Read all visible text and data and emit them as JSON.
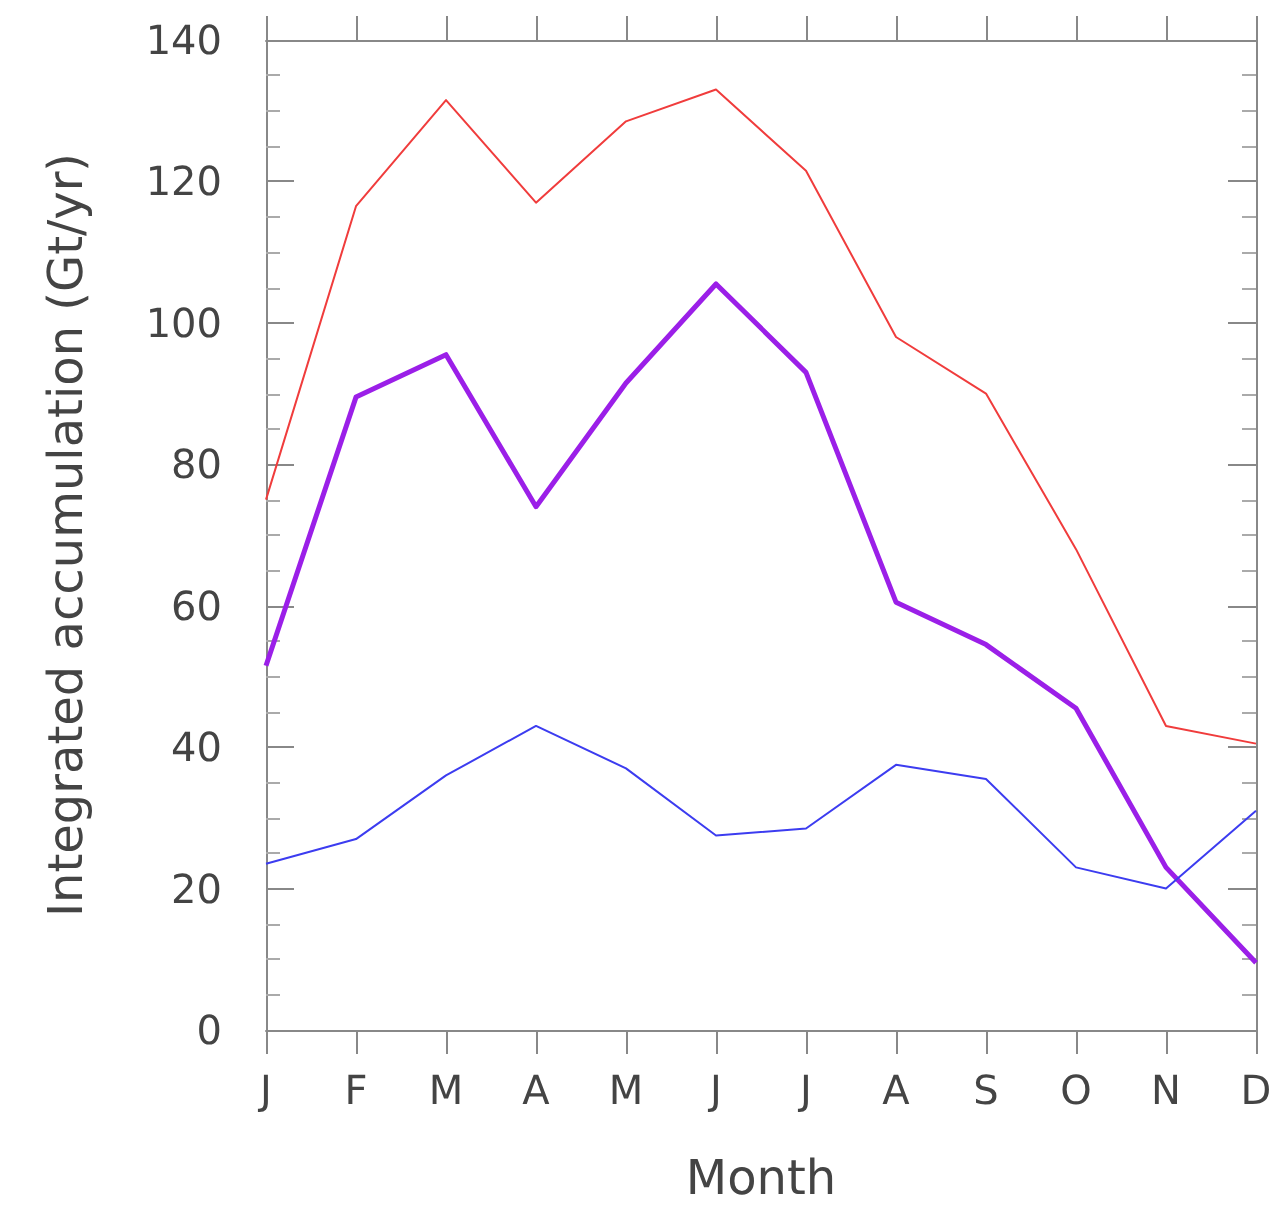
{
  "chart_data": {
    "type": "line",
    "xlabel": "Month",
    "ylabel": "Integrated accumulation (Gt/yr)",
    "categories": [
      "J",
      "F",
      "M",
      "A",
      "M",
      "J",
      "J",
      "A",
      "S",
      "O",
      "N",
      "D"
    ],
    "series": [
      {
        "color": "#f03c3c",
        "values": [
          75,
          116.5,
          131.5,
          117,
          128.5,
          133,
          121.5,
          98,
          90,
          68,
          43,
          40.5
        ]
      },
      {
        "color": "#9b1fe8",
        "values": [
          51.5,
          89.5,
          95.5,
          74,
          91.5,
          105.5,
          93,
          60.5,
          54.5,
          45.5,
          23,
          9.5
        ]
      },
      {
        "color": "#3c3cf0",
        "values": [
          23.5,
          27,
          36,
          43,
          37,
          27.5,
          28.5,
          37.5,
          35.5,
          23,
          20,
          31
        ]
      }
    ],
    "ylim": [
      0,
      140
    ],
    "yticks": [
      0,
      20,
      40,
      60,
      80,
      100,
      120,
      140
    ],
    "grid": false,
    "marker": "none",
    "line_style": "solid"
  }
}
